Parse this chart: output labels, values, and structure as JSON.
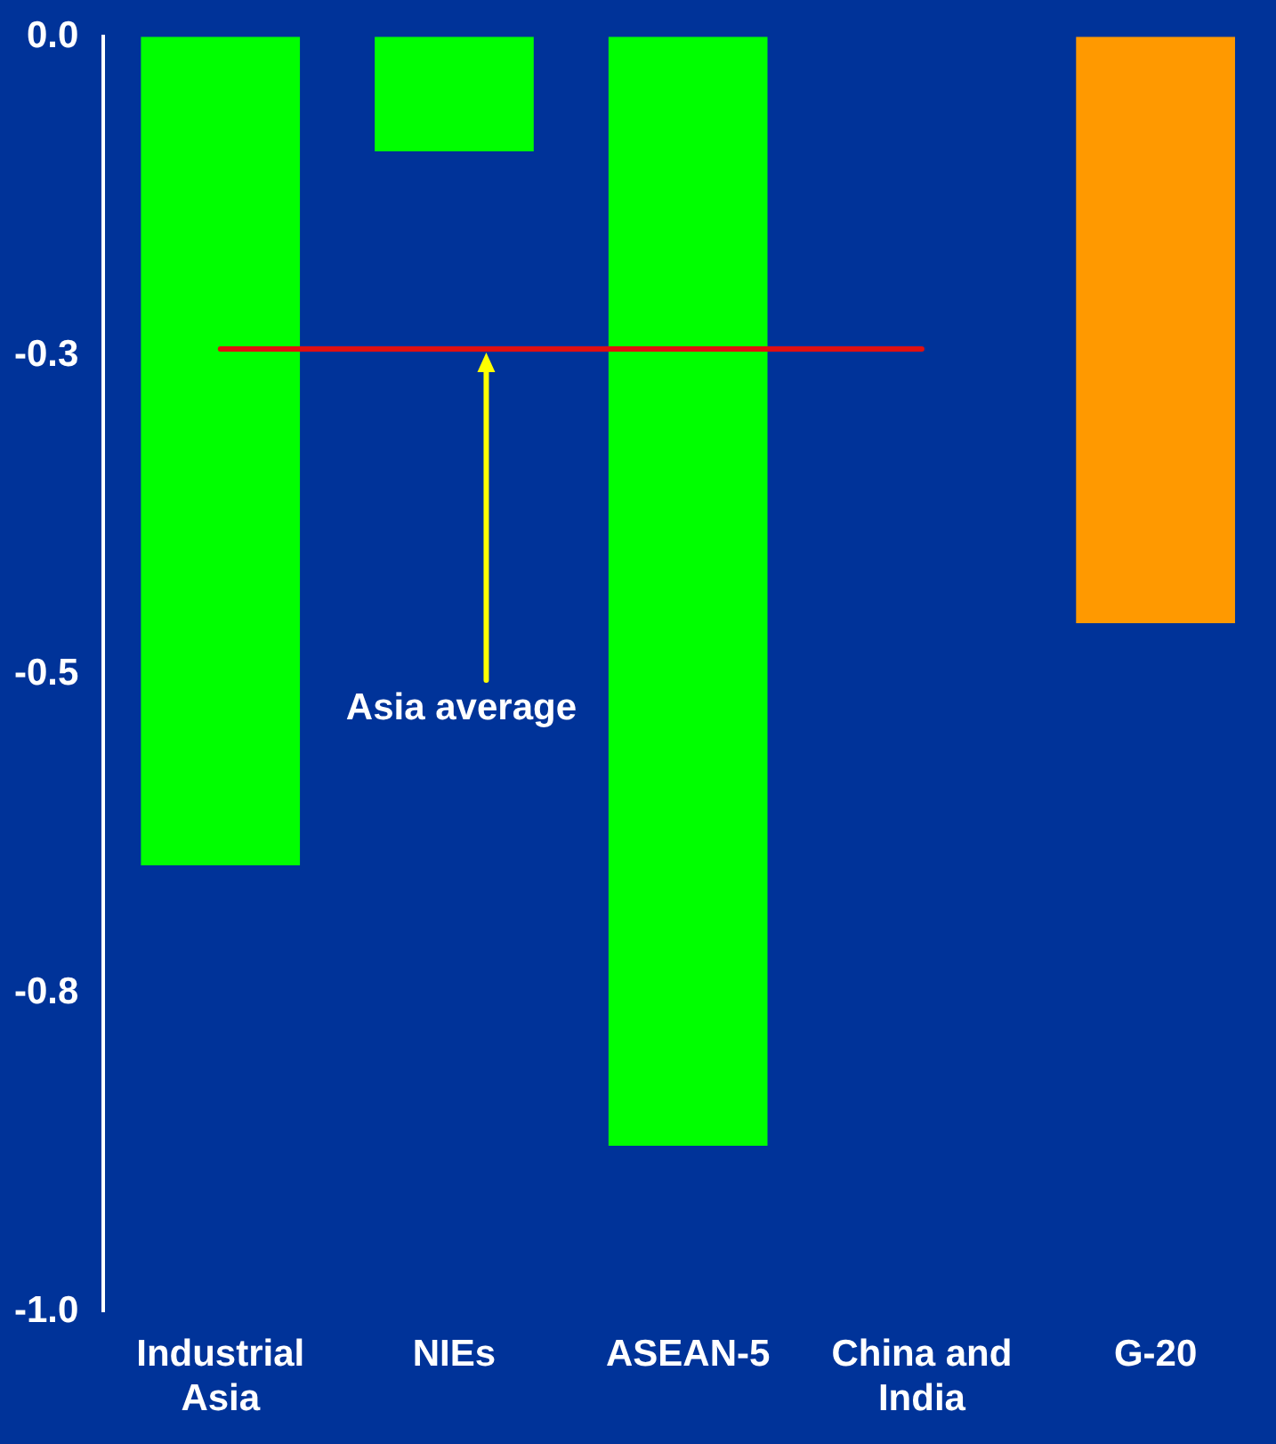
{
  "chart_data": {
    "type": "bar",
    "categories": [
      "Industrial Asia",
      "NIEs",
      "ASEAN-5",
      "China and India",
      "G-20"
    ],
    "values": [
      -0.65,
      -0.09,
      -0.87,
      0,
      -0.46
    ],
    "colors": [
      "#00ff00",
      "#00ff00",
      "#00ff00",
      "#00ff00",
      "#ff9900"
    ],
    "ylim": [
      -1.0,
      0.0
    ],
    "yticks": [
      {
        "value": 0,
        "label": "0.0"
      },
      {
        "value": -0.25,
        "label": "-0.3"
      },
      {
        "value": -0.5,
        "label": "-0.5"
      },
      {
        "value": -0.75,
        "label": "-0.8"
      },
      {
        "value": -1,
        "label": "-1.0"
      }
    ],
    "ref_lines": [
      {
        "axis": "y",
        "value": -0.245,
        "label": "Asia average",
        "color": "#e01010"
      }
    ],
    "grid": false,
    "legend": false
  }
}
